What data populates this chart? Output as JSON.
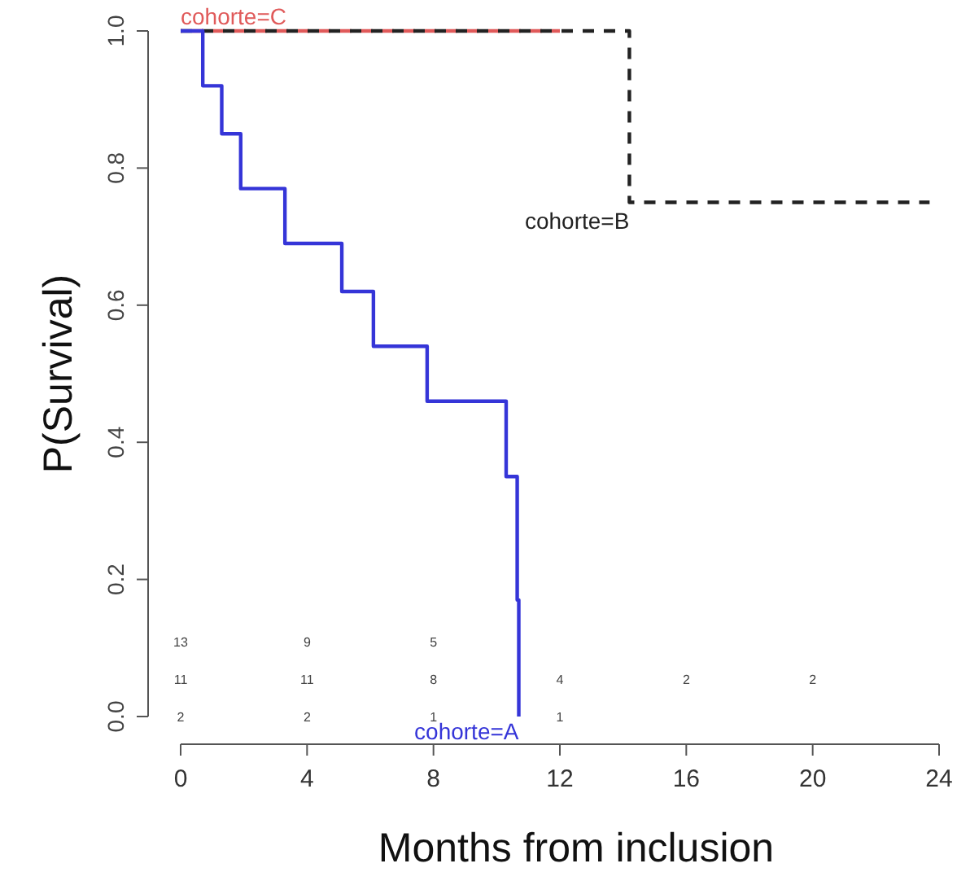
{
  "chart_data": {
    "type": "step",
    "xlabel": "Months from inclusion",
    "ylabel": "P(Survival)",
    "xlim": [
      0,
      24
    ],
    "ylim": [
      0,
      1
    ],
    "xticks": [
      0,
      4,
      8,
      12,
      16,
      20,
      24
    ],
    "yticks": [
      {
        "value": 0,
        "label": "0.0"
      },
      {
        "value": 0.2,
        "label": "0.2"
      },
      {
        "value": 0.4,
        "label": "0.4"
      },
      {
        "value": 0.6,
        "label": "0.6"
      },
      {
        "value": 0.8,
        "label": "0.8"
      },
      {
        "value": 1,
        "label": "1.0"
      }
    ],
    "grid": false,
    "legend": false,
    "marker": "none",
    "series": [
      {
        "name": "cohorte=A",
        "color": "#3535d8",
        "line_style": "solid",
        "x": [
          0,
          0.7,
          1.3,
          1.9,
          3.3,
          5.1,
          6.1,
          7.8,
          10.3,
          10.65,
          10.7
        ],
        "values": [
          1,
          0.92,
          0.85,
          0.77,
          0.69,
          0.62,
          0.54,
          0.46,
          0.35,
          0.17,
          0
        ]
      },
      {
        "name": "cohorte=B",
        "color": "#222222",
        "line_style": "dashed",
        "x": [
          0,
          14.2,
          23.7
        ],
        "values": [
          1,
          0.75,
          0.75
        ]
      },
      {
        "name": "cohorte=C",
        "color": "#e05a5a",
        "line_style": "dashed",
        "x": [
          0,
          12
        ],
        "values": [
          1,
          1
        ]
      }
    ],
    "annotations": [
      "13",
      "9",
      "5",
      "11",
      "11",
      "8",
      "4",
      "2",
      "2",
      "2",
      "2",
      "1",
      "1"
    ]
  }
}
